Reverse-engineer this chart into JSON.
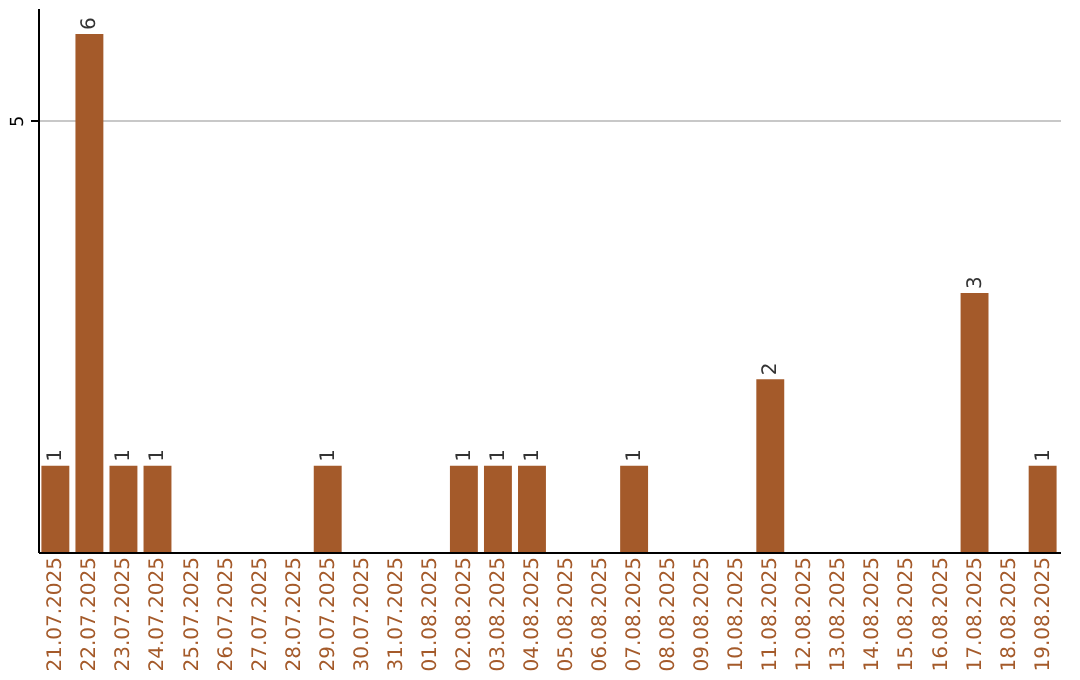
{
  "chart_data": {
    "type": "bar",
    "categories": [
      "21.07.2025",
      "22.07.2025",
      "23.07.2025",
      "24.07.2025",
      "25.07.2025",
      "26.07.2025",
      "27.07.2025",
      "28.07.2025",
      "29.07.2025",
      "30.07.2025",
      "31.07.2025",
      "01.08.2025",
      "02.08.2025",
      "03.08.2025",
      "04.08.2025",
      "05.08.2025",
      "06.08.2025",
      "07.08.2025",
      "08.08.2025",
      "09.08.2025",
      "10.08.2025",
      "11.08.2025",
      "12.08.2025",
      "13.08.2025",
      "14.08.2025",
      "15.08.2025",
      "16.08.2025",
      "17.08.2025",
      "18.08.2025",
      "19.08.2025"
    ],
    "values": [
      1,
      6,
      1,
      1,
      0,
      0,
      0,
      0,
      1,
      0,
      0,
      0,
      1,
      1,
      1,
      0,
      0,
      1,
      0,
      0,
      0,
      2,
      0,
      0,
      0,
      0,
      0,
      3,
      0,
      1
    ],
    "value_labels": [
      "1",
      "6",
      "1",
      "1",
      null,
      null,
      null,
      null,
      "1",
      null,
      null,
      null,
      "1",
      "1",
      "1",
      null,
      null,
      "1",
      null,
      null,
      null,
      "2",
      null,
      null,
      null,
      null,
      null,
      "3",
      null,
      "1"
    ],
    "color": "#a45a2a",
    "ylim": [
      0,
      6.3
    ],
    "yticks": [
      5
    ],
    "grid": "y"
  }
}
